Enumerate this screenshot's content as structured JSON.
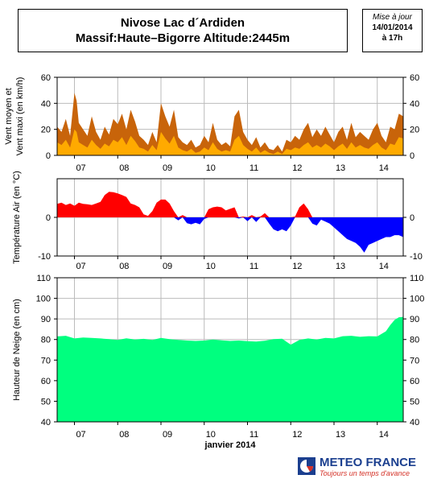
{
  "header": {
    "title_line1": "Nivose Lac d´Ardiden",
    "title_line2": "Massif:Haute–Bigorre Altitude:2445m"
  },
  "update": {
    "label": "Mise à jour",
    "date": "14/01/2014",
    "hour": "à 17h"
  },
  "footer": {
    "month_label": "janvier 2014",
    "logo_name": "METEO FRANCE",
    "logo_slogan": "Toujours un temps d'avance"
  },
  "colors": {
    "wind_max": "#c8640a",
    "wind_mean": "#ffaa00",
    "temp_positive": "#ff0000",
    "temp_negative": "#0000ff",
    "snow": "#00ff7f",
    "grid": "#bbbbbb",
    "logo_blue": "#1b3f8f",
    "logo_red": "#d43127"
  },
  "chart_data": [
    {
      "type": "area",
      "name": "wind",
      "ylabel_lines": [
        "Vent moyen et",
        "Vent maxi (en km/h)"
      ],
      "xlim": [
        6.6,
        14.6
      ],
      "x_ticks": [
        "07",
        "08",
        "09",
        "10",
        "11",
        "12",
        "13",
        "14"
      ],
      "ylim": [
        0,
        60
      ],
      "y_ticks": [
        0,
        20,
        40,
        60
      ],
      "grid": true,
      "series": [
        {
          "role": "max",
          "x": [
            6.6,
            6.7,
            6.8,
            6.9,
            7.0,
            7.05,
            7.1,
            7.2,
            7.3,
            7.4,
            7.5,
            7.6,
            7.7,
            7.8,
            7.9,
            8.0,
            8.1,
            8.2,
            8.3,
            8.4,
            8.5,
            8.6,
            8.7,
            8.8,
            8.9,
            9.0,
            9.1,
            9.2,
            9.3,
            9.4,
            9.5,
            9.6,
            9.7,
            9.8,
            9.9,
            10.0,
            10.1,
            10.2,
            10.3,
            10.4,
            10.5,
            10.6,
            10.7,
            10.8,
            10.9,
            11.0,
            11.1,
            11.2,
            11.3,
            11.4,
            11.5,
            11.6,
            11.7,
            11.8,
            11.9,
            12.0,
            12.1,
            12.2,
            12.3,
            12.4,
            12.5,
            12.6,
            12.7,
            12.8,
            12.9,
            13.0,
            13.1,
            13.2,
            13.3,
            13.4,
            13.5,
            13.6,
            13.7,
            13.8,
            13.9,
            14.0,
            14.1,
            14.2,
            14.3,
            14.4,
            14.5,
            14.6
          ],
          "values": [
            22,
            18,
            28,
            15,
            48,
            42,
            25,
            20,
            15,
            30,
            18,
            12,
            22,
            16,
            28,
            24,
            32,
            20,
            35,
            26,
            15,
            12,
            8,
            18,
            10,
            40,
            30,
            22,
            35,
            14,
            10,
            8,
            12,
            6,
            8,
            15,
            10,
            25,
            12,
            8,
            10,
            7,
            30,
            35,
            18,
            12,
            8,
            14,
            6,
            10,
            5,
            4,
            8,
            3,
            12,
            10,
            15,
            12,
            20,
            25,
            14,
            20,
            15,
            22,
            16,
            10,
            18,
            22,
            12,
            25,
            14,
            18,
            15,
            12,
            20,
            25,
            15,
            10,
            22,
            20,
            32,
            30
          ]
        },
        {
          "role": "mean",
          "x": [
            6.6,
            6.7,
            6.8,
            6.9,
            7.0,
            7.05,
            7.1,
            7.2,
            7.3,
            7.4,
            7.5,
            7.6,
            7.7,
            7.8,
            7.9,
            8.0,
            8.1,
            8.2,
            8.3,
            8.4,
            8.5,
            8.6,
            8.7,
            8.8,
            8.9,
            9.0,
            9.1,
            9.2,
            9.3,
            9.4,
            9.5,
            9.6,
            9.7,
            9.8,
            9.9,
            10.0,
            10.1,
            10.2,
            10.3,
            10.4,
            10.5,
            10.6,
            10.7,
            10.8,
            10.9,
            11.0,
            11.1,
            11.2,
            11.3,
            11.4,
            11.5,
            11.6,
            11.7,
            11.8,
            11.9,
            12.0,
            12.1,
            12.2,
            12.3,
            12.4,
            12.5,
            12.6,
            12.7,
            12.8,
            12.9,
            13.0,
            13.1,
            13.2,
            13.3,
            13.4,
            13.5,
            13.6,
            13.7,
            13.8,
            13.9,
            14.0,
            14.1,
            14.2,
            14.3,
            14.4,
            14.5,
            14.6
          ],
          "values": [
            10,
            8,
            12,
            6,
            20,
            18,
            10,
            8,
            6,
            12,
            8,
            5,
            9,
            7,
            12,
            10,
            14,
            8,
            15,
            11,
            6,
            5,
            3,
            8,
            4,
            18,
            13,
            9,
            15,
            6,
            4,
            3,
            5,
            2,
            3,
            6,
            4,
            10,
            5,
            3,
            4,
            3,
            12,
            15,
            8,
            5,
            3,
            6,
            2,
            4,
            2,
            1,
            3,
            1,
            5,
            4,
            6,
            5,
            8,
            10,
            6,
            8,
            6,
            9,
            7,
            4,
            7,
            9,
            5,
            10,
            6,
            8,
            6,
            5,
            8,
            10,
            6,
            4,
            9,
            8,
            14,
            13
          ]
        }
      ]
    },
    {
      "type": "area",
      "name": "temperature",
      "ylabel": "Température Air (en °C)",
      "xlim": [
        6.6,
        14.6
      ],
      "x_ticks": [
        "07",
        "08",
        "09",
        "10",
        "11",
        "12",
        "13",
        "14"
      ],
      "ylim": [
        -10,
        10
      ],
      "y_ticks": [
        -10,
        0
      ],
      "grid": true,
      "x": [
        6.6,
        6.7,
        6.8,
        6.9,
        7.0,
        7.1,
        7.2,
        7.3,
        7.4,
        7.5,
        7.6,
        7.7,
        7.8,
        7.9,
        8.0,
        8.1,
        8.2,
        8.3,
        8.4,
        8.5,
        8.6,
        8.7,
        8.8,
        8.9,
        9.0,
        9.1,
        9.2,
        9.3,
        9.4,
        9.5,
        9.6,
        9.7,
        9.8,
        9.9,
        10.0,
        10.1,
        10.2,
        10.3,
        10.4,
        10.5,
        10.6,
        10.7,
        10.8,
        10.9,
        11.0,
        11.1,
        11.2,
        11.3,
        11.4,
        11.5,
        11.6,
        11.7,
        11.8,
        11.9,
        12.0,
        12.1,
        12.2,
        12.3,
        12.4,
        12.5,
        12.6,
        12.7,
        12.8,
        12.9,
        13.0,
        13.1,
        13.2,
        13.3,
        13.4,
        13.5,
        13.6,
        13.7,
        13.8,
        13.9,
        14.0,
        14.1,
        14.2,
        14.3,
        14.4,
        14.5,
        14.6
      ],
      "values": [
        3.5,
        3.8,
        3.2,
        3.6,
        3.0,
        3.8,
        3.5,
        3.4,
        3.2,
        3.6,
        4.0,
        5.8,
        6.6,
        6.5,
        6.2,
        5.8,
        5.3,
        3.6,
        3.2,
        2.6,
        0.8,
        0.4,
        1.6,
        3.8,
        4.6,
        4.6,
        3.6,
        1.6,
        -0.8,
        0.6,
        -1.5,
        -1.8,
        -1.4,
        -1.8,
        -0.4,
        2.1,
        2.6,
        2.8,
        2.6,
        1.8,
        2.2,
        2.6,
        -0.3,
        0.2,
        -1.0,
        0.6,
        -1.2,
        0.2,
        1.1,
        -1.6,
        -3.1,
        -3.6,
        -3.1,
        -3.6,
        -2.1,
        0.2,
        2.6,
        3.6,
        2.1,
        -1.6,
        -2.1,
        -0.6,
        -1.1,
        -1.6,
        -2.6,
        -3.6,
        -4.6,
        -5.6,
        -6.1,
        -6.6,
        -7.6,
        -9.1,
        -7.1,
        -6.6,
        -6.1,
        -5.6,
        -5.1,
        -5.1,
        -4.6,
        -4.6,
        -5.1
      ]
    },
    {
      "type": "area",
      "name": "snow",
      "ylabel": "Hauteur de Neige (en cm)",
      "xlabel": "janvier 2014",
      "xlim": [
        6.6,
        14.6
      ],
      "x_ticks": [
        "07",
        "08",
        "09",
        "10",
        "11",
        "12",
        "13",
        "14"
      ],
      "ylim": [
        40,
        110
      ],
      "y_ticks": [
        40,
        50,
        60,
        70,
        80,
        90,
        100,
        110
      ],
      "grid": true,
      "x": [
        6.6,
        6.8,
        7.0,
        7.2,
        7.4,
        7.6,
        7.8,
        8.0,
        8.2,
        8.4,
        8.6,
        8.8,
        9.0,
        9.2,
        9.4,
        9.6,
        9.8,
        10.0,
        10.2,
        10.4,
        10.6,
        10.8,
        11.0,
        11.2,
        11.4,
        11.6,
        11.8,
        12.0,
        12.2,
        12.4,
        12.6,
        12.8,
        13.0,
        13.2,
        13.4,
        13.6,
        13.8,
        14.0,
        14.2,
        14.3,
        14.4,
        14.5,
        14.6
      ],
      "values": [
        81.5,
        81.8,
        80.5,
        81.0,
        80.8,
        80.5,
        80.2,
        79.8,
        80.6,
        80.0,
        80.3,
        79.8,
        80.8,
        80.2,
        79.8,
        79.5,
        79.3,
        79.5,
        80.0,
        79.6,
        79.3,
        79.5,
        79.2,
        79.0,
        79.4,
        80.2,
        80.4,
        77.5,
        79.8,
        80.5,
        80.0,
        80.8,
        80.5,
        81.6,
        81.8,
        81.3,
        81.6,
        81.5,
        84.0,
        87.0,
        89.5,
        90.8,
        91.0
      ]
    }
  ]
}
